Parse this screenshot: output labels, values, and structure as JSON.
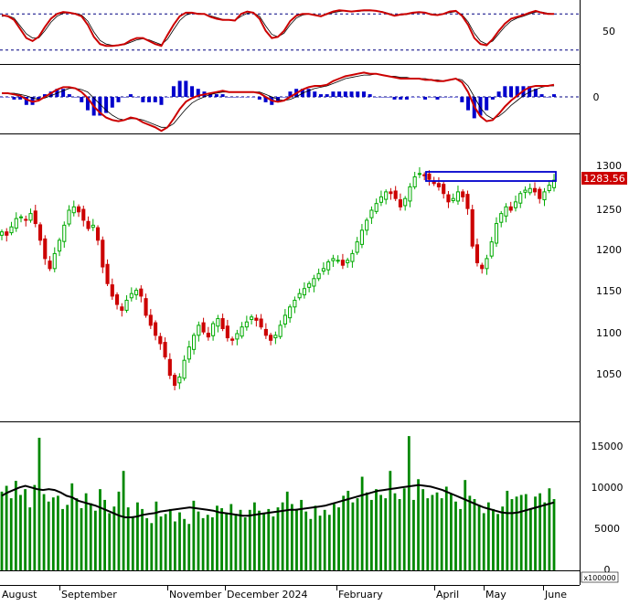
{
  "chart_data": [
    {
      "panel": "stochastic",
      "type": "line",
      "ylim": [
        0,
        100
      ],
      "y_ticks": [
        "50"
      ],
      "reference_lines": [
        80,
        20
      ],
      "colors": {
        "line": "#cc0000",
        "signal": "#000000",
        "reference": "#000080"
      },
      "series": [
        {
          "values": [
            78,
            76,
            70,
            55,
            40,
            35,
            42,
            58,
            72,
            80,
            83,
            82,
            80,
            76,
            62,
            42,
            30,
            27,
            27,
            28,
            30,
            36,
            40,
            40,
            35,
            30,
            27,
            45,
            62,
            76,
            82,
            82,
            80,
            80,
            75,
            72,
            70,
            70,
            69,
            80,
            84,
            82,
            72,
            52,
            40,
            42,
            52,
            68,
            77,
            80,
            80,
            78,
            76,
            80,
            84,
            86,
            85,
            84,
            85,
            86,
            86,
            85,
            83,
            80,
            77,
            79,
            80,
            82,
            83,
            82,
            79,
            78,
            80,
            84,
            85,
            77,
            62,
            40,
            30,
            28,
            38,
            52,
            64,
            72,
            75,
            78,
            82,
            85,
            82,
            80,
            80
          ]
        },
        {
          "values": [
            76,
            77,
            73,
            60,
            47,
            40,
            40,
            52,
            66,
            76,
            81,
            82,
            81,
            78,
            68,
            50,
            36,
            30,
            28,
            28,
            29,
            33,
            37,
            39,
            37,
            33,
            29,
            38,
            54,
            69,
            78,
            81,
            81,
            80,
            77,
            74,
            71,
            70,
            69,
            76,
            81,
            82,
            76,
            60,
            46,
            42,
            48,
            62,
            73,
            78,
            80,
            79,
            77,
            79,
            82,
            84,
            85,
            84,
            84,
            85,
            85,
            85,
            84,
            81,
            78,
            78,
            79,
            81,
            82,
            82,
            80,
            79,
            80,
            82,
            84,
            79,
            67,
            48,
            35,
            30,
            35,
            47,
            59,
            68,
            73,
            76,
            80,
            83,
            83,
            81,
            80
          ]
        }
      ]
    },
    {
      "panel": "macd",
      "type": "line",
      "y_ticks": [
        "0"
      ],
      "colors": {
        "line": "#cc0000",
        "signal": "#000000",
        "histogram": "#0000cc"
      },
      "series": [
        {
          "values": [
            3,
            3,
            2,
            1,
            -2,
            -4,
            -3,
            0,
            3,
            6,
            8,
            8,
            7,
            4,
            -1,
            -8,
            -13,
            -17,
            -19,
            -20,
            -19,
            -17,
            -18,
            -21,
            -23,
            -25,
            -28,
            -25,
            -18,
            -10,
            -4,
            -1,
            1,
            2,
            3,
            4,
            5,
            4,
            4,
            4,
            4,
            4,
            3,
            0,
            -3,
            -4,
            -3,
            0,
            3,
            6,
            8,
            9,
            9,
            10,
            13,
            15,
            17,
            18,
            19,
            20,
            19,
            19,
            18,
            17,
            16,
            15,
            15,
            15,
            15,
            14,
            14,
            13,
            13,
            14,
            15,
            12,
            4,
            -8,
            -16,
            -20,
            -19,
            -14,
            -8,
            -3,
            1,
            5,
            8,
            9,
            9,
            9,
            10
          ]
        },
        {
          "values": [
            3,
            3,
            3,
            2,
            1,
            -1,
            -2,
            -1,
            1,
            3,
            5,
            7,
            7,
            6,
            4,
            -1,
            -6,
            -11,
            -15,
            -18,
            -19,
            -18,
            -18,
            -19,
            -21,
            -23,
            -25,
            -25,
            -22,
            -16,
            -10,
            -5,
            -2,
            0,
            2,
            3,
            4,
            4,
            4,
            4,
            4,
            4,
            4,
            2,
            0,
            -2,
            -3,
            -2,
            0,
            3,
            5,
            7,
            8,
            9,
            11,
            13,
            15,
            16,
            17,
            18,
            18,
            19,
            18,
            17,
            17,
            16,
            16,
            15,
            15,
            15,
            14,
            14,
            13,
            14,
            15,
            14,
            9,
            0,
            -9,
            -15,
            -18,
            -16,
            -12,
            -7,
            -3,
            1,
            4,
            6,
            8,
            9,
            9
          ]
        }
      ]
    },
    {
      "panel": "price",
      "type": "candlestick",
      "x_tick_labels": [
        "August",
        "September",
        "November",
        "December 2024",
        "February",
        "April",
        "May",
        "June"
      ],
      "y_ticks": [
        "1300",
        "1250",
        "1200",
        "1150",
        "1100",
        "1050"
      ],
      "ylim": [
        1010,
        1310
      ],
      "last_price_label": "1283.56",
      "colors": {
        "up": "#00aa00",
        "down": "#cc0000",
        "resistance_box": "#0000cc",
        "price_tag": "#cc0000"
      },
      "resistance_zone": [
        1283,
        1294
      ],
      "close": [
        1222,
        1218,
        1228,
        1238,
        1240,
        1236,
        1244,
        1232,
        1212,
        1190,
        1178,
        1196,
        1212,
        1230,
        1248,
        1252,
        1246,
        1236,
        1226,
        1230,
        1212,
        1180,
        1160,
        1145,
        1135,
        1128,
        1140,
        1148,
        1152,
        1145,
        1122,
        1110,
        1098,
        1088,
        1072,
        1050,
        1038,
        1048,
        1068,
        1084,
        1098,
        1110,
        1102,
        1096,
        1112,
        1118,
        1106,
        1095,
        1092,
        1100,
        1108,
        1114,
        1120,
        1116,
        1108,
        1098,
        1092,
        1098,
        1110,
        1122,
        1132,
        1140,
        1148,
        1154,
        1160,
        1166,
        1172,
        1178,
        1186,
        1190,
        1188,
        1182,
        1188,
        1196,
        1210,
        1224,
        1236,
        1248,
        1256,
        1264,
        1270,
        1268,
        1262,
        1252,
        1262,
        1276,
        1288,
        1292,
        1290,
        1285,
        1280,
        1276,
        1268,
        1258,
        1262,
        1270,
        1264,
        1250,
        1205,
        1185,
        1178,
        1190,
        1210,
        1232,
        1244,
        1252,
        1248,
        1258,
        1268,
        1272,
        1274,
        1270,
        1262,
        1270,
        1278,
        1284
      ]
    },
    {
      "panel": "volume",
      "type": "bar",
      "y_ticks": [
        "15000",
        "10000",
        "5000",
        "0"
      ],
      "ylim": [
        0,
        16000
      ],
      "unit_label": "x100000",
      "colors": {
        "bar": "#008800",
        "moving_average": "#000000"
      },
      "values": [
        9500,
        10200,
        8700,
        10800,
        9100,
        9800,
        7600,
        10300,
        16000,
        9200,
        8300,
        8800,
        9000,
        7400,
        7900,
        10500,
        8700,
        7500,
        9300,
        8100,
        7200,
        9800,
        8500,
        6900,
        7700,
        9500,
        12000,
        7600,
        6400,
        8200,
        7400,
        6300,
        5700,
        8300,
        6500,
        6800,
        7400,
        5900,
        7000,
        6200,
        5600,
        8400,
        7100,
        6300,
        6700,
        6400,
        7800,
        7500,
        6900,
        8000,
        6800,
        7300,
        6400,
        7300,
        8200,
        7200,
        6800,
        7400,
        6500,
        7600,
        8200,
        9500,
        8000,
        7400,
        8500,
        7100,
        6200,
        7800,
        6600,
        7300,
        6700,
        8000,
        7600,
        9000,
        9600,
        8200,
        8700,
        11300,
        9400,
        8500,
        9800,
        9100,
        8700,
        12000,
        9300,
        8600,
        9900,
        16200,
        8500,
        11000,
        9800,
        8700,
        9100,
        9400,
        8700,
        10100,
        9200,
        8300,
        7400,
        10900,
        9000,
        8600,
        7900,
        6900,
        8200,
        7400,
        6800,
        7700,
        9600,
        8600,
        8900,
        9100,
        9200,
        7500,
        8900,
        9300,
        8200,
        9900,
        8600
      ],
      "moving_average": [
        9000,
        9400,
        9700,
        10000,
        10200,
        10000,
        9800,
        9700,
        9800,
        9700,
        9400,
        9000,
        8800,
        8400,
        8200,
        8000,
        7800,
        7500,
        7200,
        6900,
        6600,
        6400,
        6400,
        6500,
        6700,
        6800,
        6900,
        7100,
        7200,
        7300,
        7400,
        7500,
        7600,
        7500,
        7400,
        7300,
        7200,
        7000,
        6900,
        6800,
        6700,
        6600,
        6600,
        6700,
        6800,
        6900,
        7000,
        7100,
        7200,
        7300,
        7300,
        7400,
        7500,
        7600,
        7700,
        7800,
        8000,
        8200,
        8400,
        8600,
        8800,
        9000,
        9200,
        9400,
        9600,
        9700,
        9800,
        9900,
        10000,
        10100,
        10200,
        10300,
        10200,
        10100,
        9900,
        9700,
        9400,
        9100,
        8800,
        8500,
        8200,
        7900,
        7600,
        7400,
        7200,
        7000,
        6900,
        6900,
        7000,
        7200,
        7400,
        7600,
        7800,
        8000,
        8200
      ]
    }
  ]
}
